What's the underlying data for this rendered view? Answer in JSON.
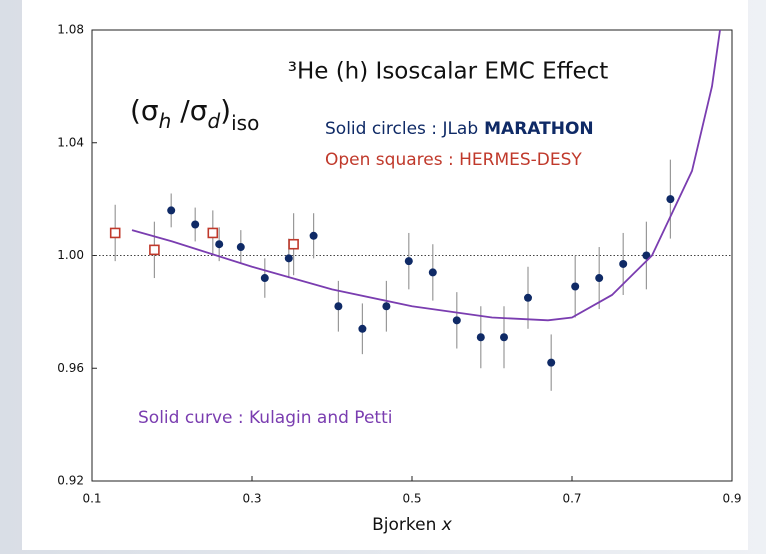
{
  "chart_data": {
    "type": "scatter",
    "title": "³He (h) Isoscalar EMC Effect",
    "y_label_parts": [
      "(σ",
      "h",
      " /σ",
      "d",
      ")",
      "iso"
    ],
    "x_label_parts": [
      "Bjorken ",
      "x"
    ],
    "xlim": [
      0.1,
      0.9
    ],
    "xticks": [
      0.1,
      0.3,
      0.5,
      0.7,
      0.9
    ],
    "ylim": [
      0.92,
      1.08
    ],
    "yticks": [
      0.92,
      0.96,
      {
        "value": 1,
        "label": "1.00"
      },
      1.04,
      1.08
    ],
    "reference_line": 1,
    "series": [
      {
        "name_parts": [
          "Solid circles : JLab",
          "MARATHON"
        ],
        "marker": "circle",
        "color": "#0f2a66",
        "x": [
          0.199,
          0.229,
          0.259,
          0.286,
          0.316,
          0.346,
          0.377,
          0.408,
          0.438,
          0.468,
          0.496,
          0.526,
          0.556,
          0.586,
          0.615,
          0.645,
          0.674,
          0.704,
          0.734,
          0.764,
          0.793,
          0.823
        ],
        "values": [
          1.016,
          1.011,
          1.004,
          1.003,
          0.992,
          0.999,
          1.007,
          0.982,
          0.974,
          0.982,
          0.998,
          0.994,
          0.977,
          0.971,
          0.971,
          0.985,
          0.962,
          0.989,
          0.992,
          0.997,
          1.0,
          1.02
        ],
        "errors": [
          0.006,
          0.006,
          0.006,
          0.006,
          0.007,
          0.007,
          0.008,
          0.009,
          0.009,
          0.009,
          0.01,
          0.01,
          0.01,
          0.011,
          0.011,
          0.011,
          0.01,
          0.011,
          0.011,
          0.011,
          0.012,
          0.014
        ]
      },
      {
        "name_parts": [
          "Open squares : HERMES-DESY"
        ],
        "marker": "square",
        "color": "#c0392b",
        "x": [
          0.129,
          0.178,
          0.251,
          0.352
        ],
        "values": [
          1.008,
          1.002,
          1.008,
          1.004
        ],
        "errors": [
          0.01,
          0.01,
          0.008,
          0.011
        ]
      },
      {
        "name_parts": [
          "Solid curve : Kulagin and Petti"
        ],
        "marker": "line",
        "color": "#7a3db0",
        "x": [
          0.15,
          0.2,
          0.3,
          0.4,
          0.5,
          0.6,
          0.67,
          0.7,
          0.75,
          0.8,
          0.85,
          0.875,
          0.885
        ],
        "values": [
          1.009,
          1.005,
          0.996,
          0.988,
          0.982,
          0.978,
          0.977,
          0.978,
          0.986,
          1.0,
          1.03,
          1.06,
          1.08
        ]
      }
    ]
  }
}
